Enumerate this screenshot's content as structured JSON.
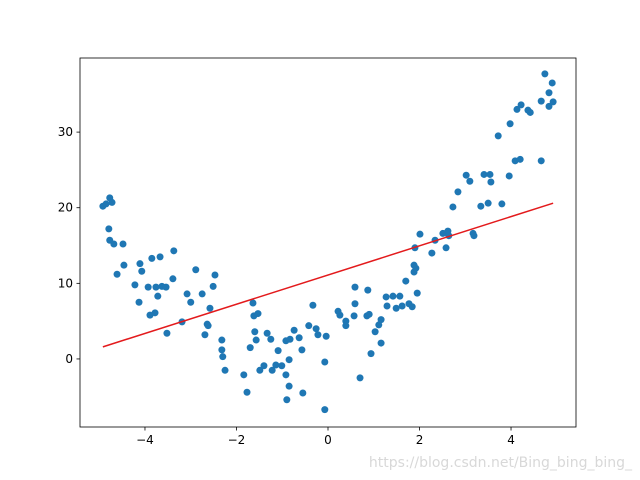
{
  "chart_data": {
    "type": "scatter",
    "xlim": [
      -5.42,
      5.42
    ],
    "ylim": [
      -9.0,
      39.8
    ],
    "xticks": [
      {
        "value": -4,
        "label": "−4"
      },
      {
        "value": -2,
        "label": "−2"
      },
      0,
      2,
      4
    ],
    "yticks": [
      0,
      10,
      20,
      30
    ],
    "grid": false,
    "series": [
      {
        "type": "scatter",
        "color": "#1f77b4",
        "x": [
          -4.92,
          -4.85,
          -4.77,
          -4.72,
          -4.79,
          -4.77,
          -4.68,
          -4.48,
          -4.61,
          -4.46,
          -4.22,
          -4.11,
          -4.07,
          -4.13,
          -3.93,
          -3.85,
          -3.67,
          -3.76,
          -3.63,
          -3.72,
          -3.89,
          -3.78,
          -3.54,
          -3.37,
          -3.39,
          -3.52,
          -3.19,
          -3.08,
          -3.0,
          -2.89,
          -2.75,
          -2.69,
          -2.58,
          -2.64,
          -2.62,
          -2.47,
          -2.51,
          -2.32,
          -2.32,
          -2.3,
          -2.25,
          -1.84,
          -1.77,
          -1.7,
          -1.64,
          -1.62,
          -1.53,
          -1.6,
          -1.57,
          -1.49,
          -1.4,
          -1.33,
          -1.25,
          -1.22,
          -1.14,
          -1.09,
          -1.01,
          -0.92,
          -0.9,
          -0.85,
          -0.92,
          -0.83,
          -0.85,
          -0.74,
          -0.63,
          -0.57,
          -0.55,
          -0.42,
          -0.33,
          -0.26,
          -0.22,
          -0.07,
          -0.04,
          -0.07,
          0.22,
          0.26,
          0.39,
          0.39,
          0.59,
          0.59,
          0.57,
          0.7,
          0.87,
          0.85,
          0.9,
          0.94,
          1.03,
          1.11,
          1.16,
          1.16,
          1.27,
          1.29,
          1.42,
          1.49,
          1.57,
          1.62,
          1.7,
          1.77,
          1.84,
          1.9,
          1.88,
          1.92,
          1.88,
          1.95,
          2.01,
          2.27,
          2.34,
          2.51,
          2.58,
          2.62,
          2.64,
          2.73,
          2.84,
          3.02,
          3.1,
          3.17,
          3.19,
          3.34,
          3.41,
          3.5,
          3.56,
          3.54,
          3.72,
          3.8,
          3.96,
          3.98,
          4.09,
          4.2,
          4.13,
          4.22,
          4.37,
          4.42,
          4.66,
          4.66,
          4.74,
          4.83,
          4.9,
          4.83,
          4.92
        ],
        "values": [
          20.2,
          20.5,
          21.3,
          20.7,
          17.2,
          15.7,
          15.2,
          15.2,
          11.2,
          12.4,
          9.8,
          12.6,
          11.6,
          7.5,
          9.5,
          13.3,
          13.5,
          9.5,
          9.6,
          8.3,
          5.8,
          6.1,
          9.5,
          14.3,
          10.6,
          3.4,
          4.9,
          8.6,
          7.5,
          11.8,
          8.6,
          3.2,
          6.7,
          4.6,
          4.4,
          11.1,
          9.6,
          2.5,
          1.2,
          0.3,
          -1.5,
          -2.1,
          -4.4,
          1.5,
          7.4,
          5.7,
          6.0,
          3.6,
          2.5,
          -1.5,
          -0.9,
          3.4,
          2.6,
          -1.5,
          -0.8,
          1.1,
          -0.9,
          -2.1,
          -5.4,
          -3.6,
          2.4,
          2.6,
          -0.1,
          3.8,
          2.8,
          1.2,
          -4.5,
          4.4,
          7.1,
          4.0,
          3.2,
          -6.7,
          3.0,
          -0.4,
          6.3,
          5.8,
          5.0,
          4.4,
          9.5,
          7.3,
          5.7,
          -2.5,
          9.1,
          5.7,
          5.9,
          0.7,
          3.6,
          4.5,
          5.2,
          2.1,
          8.2,
          7.0,
          8.3,
          6.7,
          8.3,
          7.0,
          10.3,
          7.3,
          6.9,
          14.7,
          11.5,
          12.0,
          12.4,
          8.7,
          16.5,
          14.0,
          15.7,
          16.6,
          14.7,
          16.9,
          16.3,
          20.1,
          22.1,
          24.3,
          23.5,
          16.6,
          16.3,
          20.2,
          24.4,
          20.6,
          23.4,
          24.4,
          29.5,
          20.5,
          24.2,
          31.1,
          26.2,
          26.4,
          33.0,
          33.6,
          32.9,
          32.6,
          34.1,
          26.2,
          37.7,
          35.2,
          36.5,
          33.4,
          34.0
        ]
      },
      {
        "type": "line",
        "color": "#e31a1c",
        "x": [
          -4.92,
          4.92
        ],
        "values": [
          1.6,
          20.6
        ]
      }
    ],
    "annotations": [
      {
        "text": "https://blog.csdn.net/Bing_bing_bing_"
      }
    ]
  }
}
